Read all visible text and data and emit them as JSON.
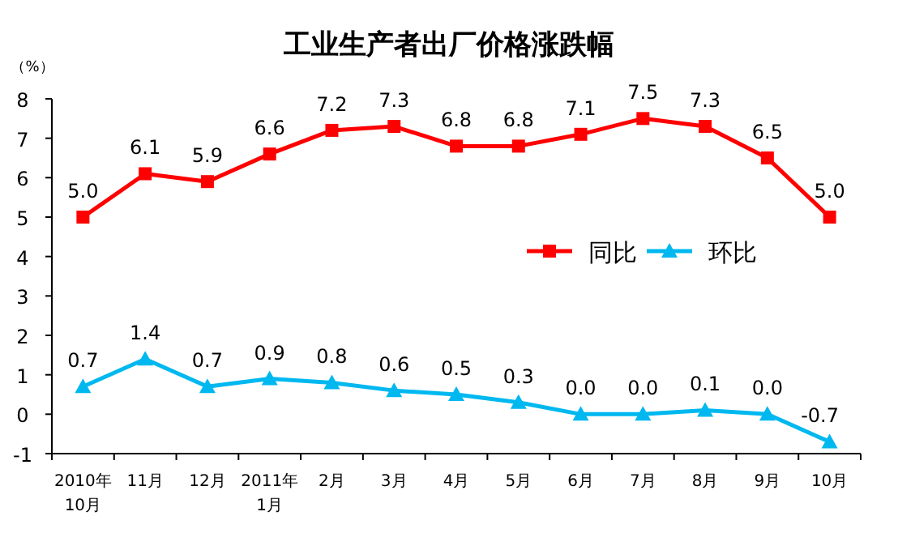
{
  "chart_data": {
    "type": "line",
    "title": "工业生产者出厂价格涨跌幅",
    "ylabel": "（%）",
    "categories": [
      "2010年\n10月",
      "11月",
      "12月",
      "2011年\n1月",
      "2月",
      "3月",
      "4月",
      "5月",
      "6月",
      "7月",
      "8月",
      "9月",
      "10月"
    ],
    "series": [
      {
        "name": "同比",
        "color": "#ff0000",
        "marker": "square",
        "values": [
          5.0,
          6.1,
          5.9,
          6.6,
          7.2,
          7.3,
          6.8,
          6.8,
          7.1,
          7.5,
          7.3,
          6.5,
          5.0
        ],
        "value_labels": [
          "5.0",
          "6.1",
          "5.9",
          "6.6",
          "7.2",
          "7.3",
          "6.8",
          "6.8",
          "7.1",
          "7.5",
          "7.3",
          "6.5",
          "5.0"
        ]
      },
      {
        "name": "环比",
        "color": "#00b8f0",
        "marker": "triangle",
        "values": [
          0.7,
          1.4,
          0.7,
          0.9,
          0.8,
          0.6,
          0.5,
          0.3,
          0.0,
          0.0,
          0.1,
          0.0,
          -0.7
        ],
        "value_labels": [
          "0.7",
          "1.4",
          "0.7",
          "0.9",
          "0.8",
          "0.6",
          "0.5",
          "0.3",
          "0.0",
          "0.0",
          "0.1",
          "0.0",
          "-0.7"
        ]
      }
    ],
    "ylim": [
      -1,
      8
    ],
    "yticks": [
      -1,
      0,
      1,
      2,
      3,
      4,
      5,
      6,
      7,
      8
    ],
    "grid": false,
    "legend": "right"
  }
}
